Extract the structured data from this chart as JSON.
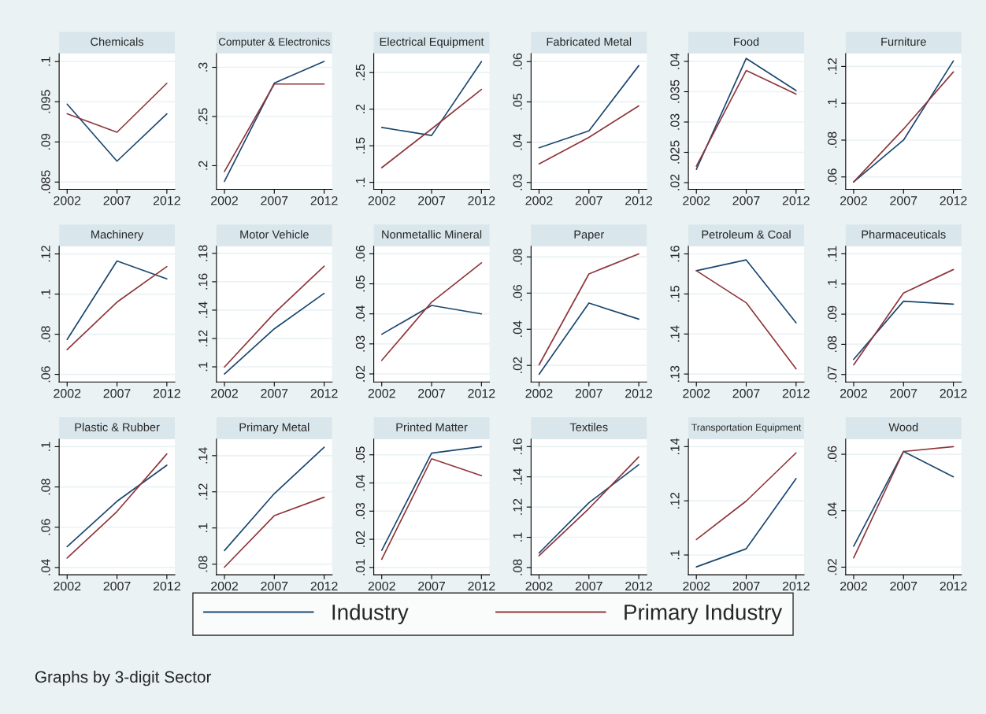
{
  "chart_data": [
    {
      "type": "line",
      "title": "Chemicals",
      "x": [
        2002,
        2007,
        2012
      ],
      "xlim": [
        2001.2,
        2012.8
      ],
      "xticks": [
        2002,
        2007,
        2012
      ],
      "ylim": [
        0.0841,
        0.101
      ],
      "yticks": [
        {
          "value": 0.085,
          "label": ".085"
        },
        {
          "value": 0.09,
          "label": ".09"
        },
        {
          "value": 0.095,
          "label": ".095"
        },
        {
          "value": 0.1,
          "label": ".1"
        }
      ],
      "grid": "y",
      "legend": "bottom",
      "annotations": [
        "Graphs by 3-digit Sector"
      ],
      "series": [
        {
          "name": "Industry",
          "color": "#1a476f",
          "values": [
            0.0947,
            0.0876,
            0.0935
          ]
        },
        {
          "name": "Primary Industry",
          "color": "#90353b",
          "values": [
            0.0935,
            0.0912,
            0.0973
          ]
        }
      ]
    },
    {
      "type": "line",
      "title": "Computer & Electronics",
      "x": [
        2002,
        2007,
        2012
      ],
      "xlim": [
        2001.2,
        2012.8
      ],
      "xticks": [
        2002,
        2007,
        2012
      ],
      "ylim": [
        0.176,
        0.314
      ],
      "yticks": [
        {
          "value": 0.2,
          "label": ".2"
        },
        {
          "value": 0.25,
          "label": ".25"
        },
        {
          "value": 0.3,
          "label": ".3"
        }
      ],
      "grid": "y",
      "series": [
        {
          "color": "#1a476f",
          "values": [
            0.184,
            0.284,
            0.306
          ]
        },
        {
          "color": "#90353b",
          "values": [
            0.194,
            0.283,
            0.283
          ]
        }
      ]
    },
    {
      "type": "line",
      "title": "Electrical Equipment",
      "x": [
        2002,
        2007,
        2012
      ],
      "xlim": [
        2001.2,
        2012.8
      ],
      "xticks": [
        2002,
        2007,
        2012
      ],
      "ylim": [
        0.0905,
        0.276
      ],
      "yticks": [
        {
          "value": 0.1,
          "label": ".1"
        },
        {
          "value": 0.15,
          "label": ".15"
        },
        {
          "value": 0.2,
          "label": ".2"
        },
        {
          "value": 0.25,
          "label": ".25"
        }
      ],
      "grid": "y",
      "series": [
        {
          "color": "#1a476f",
          "values": [
            0.175,
            0.164,
            0.265
          ]
        },
        {
          "color": "#90353b",
          "values": [
            0.12,
            0.173,
            0.227
          ]
        }
      ]
    },
    {
      "type": "line",
      "title": "Fabricated Metal",
      "x": [
        2002,
        2007,
        2012
      ],
      "xlim": [
        2001.2,
        2012.8
      ],
      "xticks": [
        2002,
        2007,
        2012
      ],
      "ylim": [
        0.0283,
        0.062
      ],
      "yticks": [
        {
          "value": 0.03,
          "label": ".03"
        },
        {
          "value": 0.04,
          "label": ".04"
        },
        {
          "value": 0.05,
          "label": ".05"
        },
        {
          "value": 0.06,
          "label": ".06"
        }
      ],
      "grid": "y",
      "series": [
        {
          "color": "#1a476f",
          "values": [
            0.0386,
            0.0428,
            0.059
          ]
        },
        {
          "color": "#90353b",
          "values": [
            0.0346,
            0.0412,
            0.049
          ]
        }
      ]
    },
    {
      "type": "line",
      "title": "Food",
      "x": [
        2002,
        2007,
        2012
      ],
      "xlim": [
        2001.2,
        2012.8
      ],
      "xticks": [
        2002,
        2007,
        2012
      ],
      "ylim": [
        0.0189,
        0.0413
      ],
      "yticks": [
        {
          "value": 0.02,
          "label": ".02"
        },
        {
          "value": 0.025,
          "label": ".025"
        },
        {
          "value": 0.03,
          "label": ".03"
        },
        {
          "value": 0.035,
          "label": ".035"
        },
        {
          "value": 0.04,
          "label": ".04"
        }
      ],
      "grid": "y",
      "series": [
        {
          "color": "#1a476f",
          "values": [
            0.0222,
            0.0405,
            0.0352
          ]
        },
        {
          "color": "#90353b",
          "values": [
            0.0227,
            0.0385,
            0.0346
          ]
        }
      ]
    },
    {
      "type": "line",
      "title": "Furniture",
      "x": [
        2002,
        2007,
        2012
      ],
      "xlim": [
        2001.2,
        2012.8
      ],
      "xticks": [
        2002,
        2007,
        2012
      ],
      "ylim": [
        0.0533,
        0.127
      ],
      "yticks": [
        {
          "value": 0.06,
          "label": ".06"
        },
        {
          "value": 0.08,
          "label": ".08"
        },
        {
          "value": 0.1,
          "label": ".1"
        },
        {
          "value": 0.12,
          "label": ".12"
        }
      ],
      "grid": "y",
      "series": [
        {
          "color": "#1a476f",
          "values": [
            0.0573,
            0.08,
            0.123
          ]
        },
        {
          "color": "#90353b",
          "values": [
            0.0573,
            0.086,
            0.117
          ]
        }
      ]
    },
    {
      "type": "line",
      "title": "Machinery",
      "x": [
        2002,
        2007,
        2012
      ],
      "xlim": [
        2001.2,
        2012.8
      ],
      "xticks": [
        2002,
        2007,
        2012
      ],
      "ylim": [
        0.0562,
        0.1238
      ],
      "yticks": [
        {
          "value": 0.06,
          "label": ".06"
        },
        {
          "value": 0.08,
          "label": ".08"
        },
        {
          "value": 0.1,
          "label": ".1"
        },
        {
          "value": 0.12,
          "label": ".12"
        }
      ],
      "grid": "y",
      "series": [
        {
          "color": "#1a476f",
          "values": [
            0.0774,
            0.1165,
            0.1076
          ]
        },
        {
          "color": "#90353b",
          "values": [
            0.0723,
            0.096,
            0.1137
          ]
        }
      ]
    },
    {
      "type": "line",
      "title": "Motor Vehicle",
      "x": [
        2002,
        2007,
        2012
      ],
      "xlim": [
        2001.2,
        2012.8
      ],
      "xticks": [
        2002,
        2007,
        2012
      ],
      "ylim": [
        0.0893,
        0.185
      ],
      "yticks": [
        {
          "value": 0.1,
          "label": ".1"
        },
        {
          "value": 0.12,
          "label": ".12"
        },
        {
          "value": 0.14,
          "label": ".14"
        },
        {
          "value": 0.16,
          "label": ".16"
        },
        {
          "value": 0.18,
          "label": ".18"
        }
      ],
      "grid": "y",
      "series": [
        {
          "color": "#1a476f",
          "values": [
            0.0949,
            0.1268,
            0.1518
          ]
        },
        {
          "color": "#90353b",
          "values": [
            0.0999,
            0.1378,
            0.171
          ]
        }
      ]
    },
    {
      "type": "line",
      "title": "Nonmetallic Mineral",
      "x": [
        2002,
        2007,
        2012
      ],
      "xlim": [
        2001.2,
        2012.8
      ],
      "xticks": [
        2002,
        2007,
        2012
      ],
      "ylim": [
        0.0173,
        0.0625
      ],
      "yticks": [
        {
          "value": 0.02,
          "label": ".02"
        },
        {
          "value": 0.03,
          "label": ".03"
        },
        {
          "value": 0.04,
          "label": ".04"
        },
        {
          "value": 0.05,
          "label": ".05"
        },
        {
          "value": 0.06,
          "label": ".06"
        }
      ],
      "grid": "y",
      "series": [
        {
          "color": "#1a476f",
          "values": [
            0.0332,
            0.0428,
            0.04
          ]
        },
        {
          "color": "#90353b",
          "values": [
            0.0245,
            0.0439,
            0.057
          ]
        }
      ]
    },
    {
      "type": "line",
      "title": "Paper",
      "x": [
        2002,
        2007,
        2012
      ],
      "xlim": [
        2001.2,
        2012.8
      ],
      "xticks": [
        2002,
        2007,
        2012
      ],
      "ylim": [
        0.0108,
        0.0859
      ],
      "yticks": [
        {
          "value": 0.02,
          "label": ".02"
        },
        {
          "value": 0.04,
          "label": ".04"
        },
        {
          "value": 0.06,
          "label": ".06"
        },
        {
          "value": 0.08,
          "label": ".08"
        }
      ],
      "grid": "y",
      "series": [
        {
          "color": "#1a476f",
          "values": [
            0.0151,
            0.0545,
            0.0456
          ]
        },
        {
          "color": "#90353b",
          "values": [
            0.0203,
            0.0706,
            0.0817
          ]
        }
      ]
    },
    {
      "type": "line",
      "title": "Petroleum & Coal",
      "x": [
        2002,
        2007,
        2012
      ],
      "xlim": [
        2001.2,
        2012.8
      ],
      "xticks": [
        2002,
        2007,
        2012
      ],
      "ylim": [
        0.128,
        0.1619
      ],
      "yticks": [
        {
          "value": 0.13,
          "label": ".13"
        },
        {
          "value": 0.14,
          "label": ".14"
        },
        {
          "value": 0.15,
          "label": ".15"
        },
        {
          "value": 0.16,
          "label": ".16"
        }
      ],
      "grid": "y",
      "series": [
        {
          "color": "#1a476f",
          "values": [
            0.1558,
            0.1585,
            0.1428
          ]
        },
        {
          "color": "#90353b",
          "values": [
            0.1558,
            0.1478,
            0.1313
          ]
        }
      ]
    },
    {
      "type": "line",
      "title": "Pharmaceuticals",
      "x": [
        2002,
        2007,
        2012
      ],
      "xlim": [
        2001.2,
        2012.8
      ],
      "xticks": [
        2002,
        2007,
        2012
      ],
      "ylim": [
        0.0675,
        0.1125
      ],
      "yticks": [
        {
          "value": 0.07,
          "label": ".07"
        },
        {
          "value": 0.08,
          "label": ".08"
        },
        {
          "value": 0.09,
          "label": ".09"
        },
        {
          "value": 0.1,
          "label": ".1"
        },
        {
          "value": 0.11,
          "label": ".11"
        }
      ],
      "grid": "y",
      "series": [
        {
          "color": "#1a476f",
          "values": [
            0.075,
            0.0943,
            0.0933
          ]
        },
        {
          "color": "#90353b",
          "values": [
            0.0732,
            0.097,
            0.1048
          ]
        }
      ]
    },
    {
      "type": "line",
      "title": "Plastic & Rubber",
      "x": [
        2002,
        2007,
        2012
      ],
      "xlim": [
        2001.2,
        2012.8
      ],
      "xticks": [
        2002,
        2007,
        2012
      ],
      "ylim": [
        0.0364,
        0.1038
      ],
      "yticks": [
        {
          "value": 0.04,
          "label": ".04"
        },
        {
          "value": 0.06,
          "label": ".06"
        },
        {
          "value": 0.08,
          "label": ".08"
        },
        {
          "value": 0.1,
          "label": ".1"
        }
      ],
      "grid": "y",
      "series": [
        {
          "color": "#1a476f",
          "values": [
            0.0504,
            0.0729,
            0.0908
          ]
        },
        {
          "color": "#90353b",
          "values": [
            0.0447,
            0.0678,
            0.0964
          ]
        }
      ]
    },
    {
      "type": "line",
      "title": "Primary Metal",
      "x": [
        2002,
        2007,
        2012
      ],
      "xlim": [
        2001.2,
        2012.8
      ],
      "xticks": [
        2002,
        2007,
        2012
      ],
      "ylim": [
        0.0741,
        0.1492
      ],
      "yticks": [
        {
          "value": 0.08,
          "label": ".08"
        },
        {
          "value": 0.1,
          "label": ".1"
        },
        {
          "value": 0.12,
          "label": ".12"
        },
        {
          "value": 0.14,
          "label": ".14"
        }
      ],
      "grid": "y",
      "series": [
        {
          "color": "#1a476f",
          "values": [
            0.0875,
            0.119,
            0.1447
          ]
        },
        {
          "color": "#90353b",
          "values": [
            0.0783,
            0.1068,
            0.117
          ]
        }
      ]
    },
    {
      "type": "line",
      "title": "Printed Matter",
      "x": [
        2002,
        2007,
        2012
      ],
      "xlim": [
        2001.2,
        2012.8
      ],
      "xticks": [
        2002,
        2007,
        2012
      ],
      "ylim": [
        0.0074,
        0.0556
      ],
      "yticks": [
        {
          "value": 0.01,
          "label": ".01"
        },
        {
          "value": 0.02,
          "label": ".02"
        },
        {
          "value": 0.03,
          "label": ".03"
        },
        {
          "value": 0.04,
          "label": ".04"
        },
        {
          "value": 0.05,
          "label": ".05"
        }
      ],
      "grid": "y",
      "series": [
        {
          "color": "#1a476f",
          "values": [
            0.0161,
            0.0506,
            0.0529
          ]
        },
        {
          "color": "#90353b",
          "values": [
            0.0129,
            0.0486,
            0.0426
          ]
        }
      ]
    },
    {
      "type": "line",
      "title": "Textiles",
      "x": [
        2002,
        2007,
        2012
      ],
      "xlim": [
        2001.2,
        2012.8
      ],
      "xticks": [
        2002,
        2007,
        2012
      ],
      "ylim": [
        0.0752,
        0.165
      ],
      "yticks": [
        {
          "value": 0.08,
          "label": ".08"
        },
        {
          "value": 0.1,
          "label": ".1"
        },
        {
          "value": 0.12,
          "label": ".12"
        },
        {
          "value": 0.14,
          "label": ".14"
        },
        {
          "value": 0.16,
          "label": ".16"
        }
      ],
      "grid": "y",
      "series": [
        {
          "color": "#1a476f",
          "values": [
            0.0896,
            0.1229,
            0.148
          ]
        },
        {
          "color": "#90353b",
          "values": [
            0.0878,
            0.119,
            0.1532
          ]
        }
      ]
    },
    {
      "type": "line",
      "title": "Transportation Equipment",
      "x": [
        2002,
        2007,
        2012
      ],
      "xlim": [
        2001.2,
        2012.8
      ],
      "xticks": [
        2002,
        2007,
        2012
      ],
      "ylim": [
        0.0927,
        0.1428
      ],
      "yticks": [
        {
          "value": 0.1,
          "label": ".1"
        },
        {
          "value": 0.12,
          "label": ".12"
        },
        {
          "value": 0.14,
          "label": ".14"
        }
      ],
      "grid": "y",
      "series": [
        {
          "color": "#1a476f",
          "values": [
            0.0956,
            0.1023,
            0.1282
          ]
        },
        {
          "color": "#90353b",
          "values": [
            0.1057,
            0.1199,
            0.1377
          ]
        }
      ]
    },
    {
      "type": "line",
      "title": "Wood",
      "x": [
        2002,
        2007,
        2012
      ],
      "xlim": [
        2001.2,
        2012.8
      ],
      "xticks": [
        2002,
        2007,
        2012
      ],
      "ylim": [
        0.0173,
        0.0654
      ],
      "yticks": [
        {
          "value": 0.02,
          "label": ".02"
        },
        {
          "value": 0.04,
          "label": ".04"
        },
        {
          "value": 0.06,
          "label": ".06"
        }
      ],
      "grid": "y",
      "series": [
        {
          "color": "#1a476f",
          "values": [
            0.0274,
            0.061,
            0.052
          ]
        },
        {
          "color": "#90353b",
          "values": [
            0.0233,
            0.061,
            0.0627
          ]
        }
      ]
    }
  ]
}
